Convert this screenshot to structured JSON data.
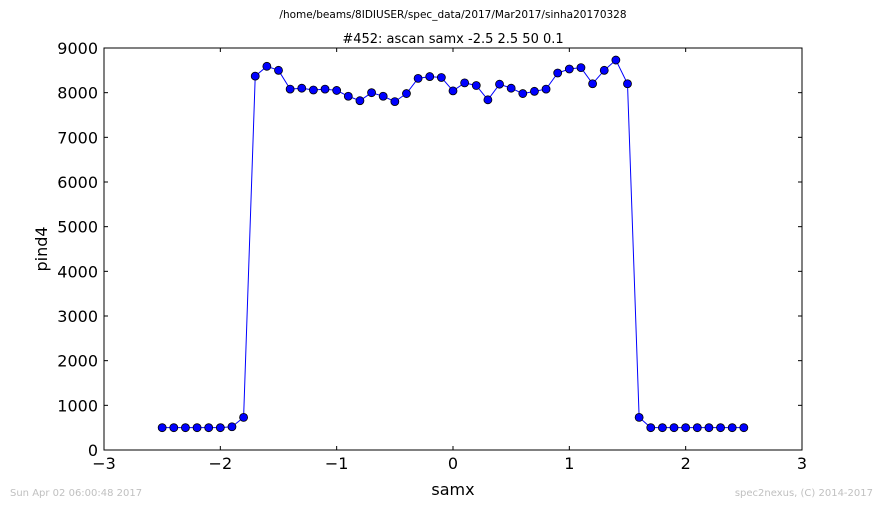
{
  "page_title": "/home/beams/8IDIUSER/spec_data/2017/Mar2017/sinha20170328",
  "footer_left": "Sun Apr 02 06:00:48 2017",
  "footer_right": "spec2nexus, (C) 2014-2017",
  "colors": {
    "series": "#0000ff",
    "text": "#000000",
    "footer": "#c0c0c0"
  },
  "chart_data": {
    "type": "line",
    "title": "#452: ascan  samx -2.5 2.5  50 0.1",
    "xlabel": "samx",
    "ylabel": "pind4",
    "xlim": [
      -3,
      3
    ],
    "ylim": [
      0,
      9000
    ],
    "xticks": [
      -3,
      -2,
      -1,
      0,
      1,
      2,
      3
    ],
    "xtick_labels": [
      "−3",
      "−2",
      "−1",
      "0",
      "1",
      "2",
      "3"
    ],
    "yticks": [
      0,
      1000,
      2000,
      3000,
      4000,
      5000,
      6000,
      7000,
      8000,
      9000
    ],
    "ytick_labels": [
      "0",
      "1000",
      "2000",
      "3000",
      "4000",
      "5000",
      "6000",
      "7000",
      "8000",
      "9000"
    ],
    "grid": false,
    "series": [
      {
        "marker": "circle",
        "x": [
          -2.5,
          -2.4,
          -2.3,
          -2.2,
          -2.1,
          -2.0,
          -1.9,
          -1.8,
          -1.7,
          -1.6,
          -1.5,
          -1.4,
          -1.3,
          -1.2,
          -1.1,
          -1.0,
          -0.9,
          -0.8,
          -0.7,
          -0.6,
          -0.5,
          -0.4,
          -0.3,
          -0.2,
          -0.1,
          0.0,
          0.1,
          0.2,
          0.3,
          0.4,
          0.5,
          0.6,
          0.7,
          0.8,
          0.9,
          1.0,
          1.1,
          1.2,
          1.3,
          1.4,
          1.5,
          1.6,
          1.7,
          1.8,
          1.9,
          2.0,
          2.1,
          2.2,
          2.3,
          2.4,
          2.5
        ],
        "y": [
          500,
          500,
          500,
          500,
          500,
          500,
          520,
          730,
          8370,
          8590,
          8500,
          8080,
          8100,
          8060,
          8080,
          8050,
          7920,
          7820,
          8000,
          7920,
          7800,
          7980,
          8320,
          8360,
          8340,
          8040,
          8220,
          8160,
          7840,
          8190,
          8100,
          7980,
          8030,
          8080,
          8440,
          8530,
          8560,
          8200,
          8500,
          8730,
          8200,
          730,
          500,
          500,
          500,
          500,
          500,
          500,
          500,
          500,
          500
        ]
      }
    ]
  }
}
